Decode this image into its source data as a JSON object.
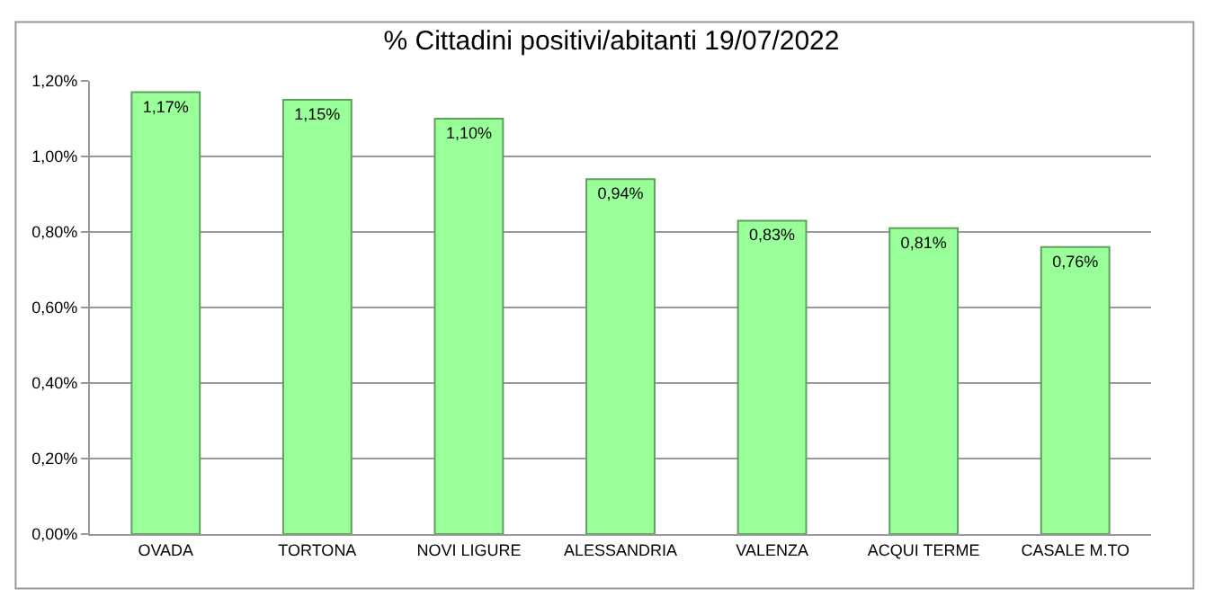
{
  "chart_data": {
    "type": "bar",
    "title": "% Cittadini positivi/abitanti 19/07/2022",
    "categories": [
      "OVADA",
      "TORTONA",
      "NOVI LIGURE",
      "ALESSANDRIA",
      "VALENZA",
      "ACQUI TERME",
      "CASALE M.TO"
    ],
    "values": [
      1.17,
      1.15,
      1.1,
      0.94,
      0.83,
      0.81,
      0.76
    ],
    "value_labels": [
      "1,17%",
      "1,15%",
      "1,10%",
      "0,94%",
      "0,83%",
      "0,81%",
      "0,76%"
    ],
    "color": "#99ff99",
    "ylim": [
      0,
      1.2
    ],
    "yticks": [
      {
        "value": 0,
        "label": "0,00%"
      },
      {
        "value": 0.2,
        "label": "0,20%"
      },
      {
        "value": 0.4,
        "label": "0,40%"
      },
      {
        "value": 0.6,
        "label": "0,60%"
      },
      {
        "value": 0.8,
        "label": "0,80%"
      },
      {
        "value": 1.0,
        "label": "1,00%"
      },
      {
        "value": 1.2,
        "label": "1,20%"
      }
    ],
    "grid": "y",
    "legend": false
  }
}
